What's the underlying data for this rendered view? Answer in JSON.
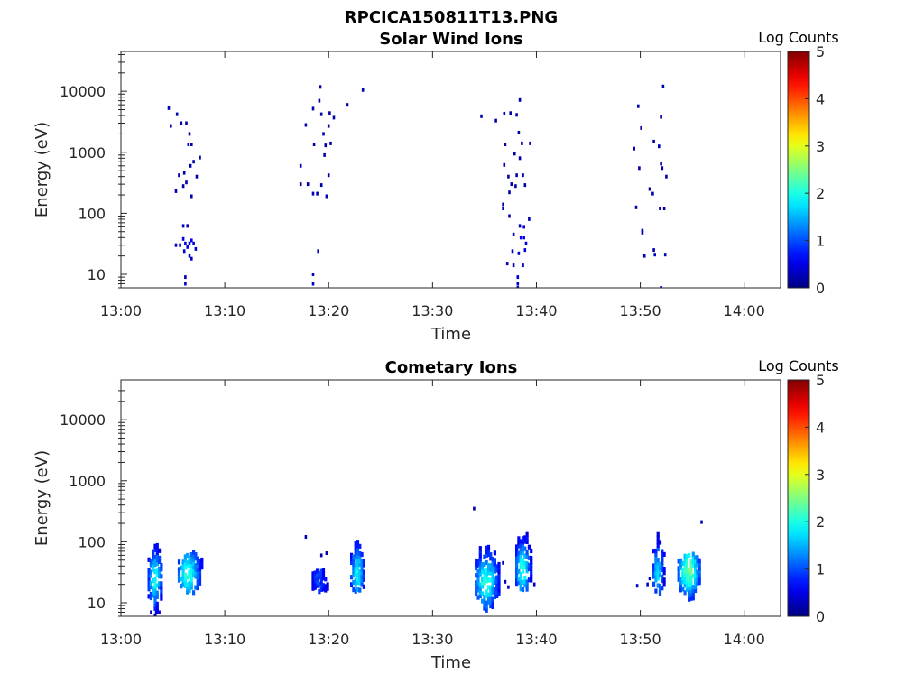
{
  "figure": {
    "title": "RPCICA150811T13.PNG"
  },
  "colormap": "jet",
  "chart_data": [
    {
      "type": "heatmap",
      "title": "Solar Wind Ions",
      "xlabel": "Time",
      "ylabel": "Energy (eV)",
      "x_ticks": [
        "13:00",
        "13:10",
        "13:20",
        "13:30",
        "13:40",
        "13:50",
        "14:00"
      ],
      "xlim_minutes_after_13_00": [
        0,
        63.5
      ],
      "y_scale": "log",
      "y_ticks": [
        10,
        100,
        1000,
        10000
      ],
      "ylim": [
        6,
        45000
      ],
      "colorbar": {
        "label": "Log Counts",
        "range": [
          0,
          5
        ],
        "ticks": [
          0,
          1,
          2,
          3,
          4,
          5
        ]
      },
      "points": [
        [
          4.6,
          5300,
          0.2
        ],
        [
          4.8,
          2700,
          0.2
        ],
        [
          5.4,
          4200,
          0.2
        ],
        [
          5.8,
          3000,
          0.2
        ],
        [
          6.3,
          3000,
          0.2
        ],
        [
          6.6,
          2000,
          0.2
        ],
        [
          6.5,
          1350,
          0.3
        ],
        [
          6.8,
          1350,
          0.2
        ],
        [
          7.0,
          700,
          0.2
        ],
        [
          7.6,
          820,
          0.2
        ],
        [
          5.6,
          420,
          0.2
        ],
        [
          6.1,
          460,
          0.2
        ],
        [
          6.7,
          600,
          0.2
        ],
        [
          7.3,
          400,
          0.2
        ],
        [
          6.0,
          280,
          0.2
        ],
        [
          6.3,
          320,
          0.2
        ],
        [
          5.3,
          230,
          0.2
        ],
        [
          6.8,
          190,
          0.2
        ],
        [
          6.0,
          62,
          0.3
        ],
        [
          6.4,
          62,
          0.3
        ],
        [
          5.3,
          30,
          0.4
        ],
        [
          5.7,
          30,
          0.4
        ],
        [
          6.0,
          38,
          0.5
        ],
        [
          6.2,
          32,
          0.5
        ],
        [
          6.4,
          28,
          0.6
        ],
        [
          6.6,
          32,
          0.5
        ],
        [
          6.8,
          36,
          0.5
        ],
        [
          7.0,
          32,
          0.4
        ],
        [
          7.2,
          26,
          0.4
        ],
        [
          6.1,
          24,
          0.4
        ],
        [
          6.6,
          20,
          0.4
        ],
        [
          6.8,
          18,
          0.3
        ],
        [
          6.2,
          9,
          0.3
        ],
        [
          6.2,
          7,
          0.3
        ],
        [
          19.2,
          11800,
          0.2
        ],
        [
          19.1,
          7000,
          0.2
        ],
        [
          18.5,
          5200,
          0.2
        ],
        [
          19.3,
          4200,
          0.2
        ],
        [
          20.1,
          4400,
          0.2
        ],
        [
          20.5,
          3700,
          0.2
        ],
        [
          21.8,
          6000,
          0.2
        ],
        [
          23.3,
          10500,
          0.2
        ],
        [
          17.8,
          2800,
          0.2
        ],
        [
          20.0,
          2700,
          0.2
        ],
        [
          19.5,
          2000,
          0.2
        ],
        [
          18.6,
          1350,
          0.2
        ],
        [
          19.7,
          1300,
          0.2
        ],
        [
          20.2,
          1400,
          0.2
        ],
        [
          19.6,
          900,
          0.2
        ],
        [
          17.3,
          600,
          0.2
        ],
        [
          20.0,
          420,
          0.2
        ],
        [
          17.3,
          300,
          0.2
        ],
        [
          18.0,
          300,
          0.2
        ],
        [
          19.3,
          290,
          0.2
        ],
        [
          18.5,
          210,
          0.3
        ],
        [
          18.9,
          210,
          0.2
        ],
        [
          19.8,
          190,
          0.2
        ],
        [
          19.0,
          24,
          0.3
        ],
        [
          18.5,
          10,
          0.3
        ],
        [
          18.5,
          7,
          0.3
        ],
        [
          34.7,
          3900,
          0.2
        ],
        [
          36.1,
          3300,
          0.2
        ],
        [
          36.9,
          4300,
          0.2
        ],
        [
          37.5,
          4400,
          0.2
        ],
        [
          38.4,
          7200,
          0.2
        ],
        [
          38.1,
          4100,
          0.2
        ],
        [
          38.3,
          2100,
          0.2
        ],
        [
          37.0,
          1350,
          0.2
        ],
        [
          38.6,
          1400,
          0.2
        ],
        [
          39.4,
          1400,
          0.2
        ],
        [
          37.9,
          950,
          0.2
        ],
        [
          38.4,
          800,
          0.2
        ],
        [
          36.9,
          620,
          0.2
        ],
        [
          38.1,
          420,
          0.2
        ],
        [
          37.3,
          400,
          0.2
        ],
        [
          38.7,
          420,
          0.2
        ],
        [
          37.6,
          300,
          0.2
        ],
        [
          38.0,
          280,
          0.2
        ],
        [
          38.9,
          290,
          0.2
        ],
        [
          37.4,
          220,
          0.2
        ],
        [
          36.8,
          140,
          0.3
        ],
        [
          36.8,
          120,
          0.3
        ],
        [
          37.4,
          90,
          0.2
        ],
        [
          39.3,
          80,
          0.3
        ],
        [
          38.4,
          62,
          0.3
        ],
        [
          38.8,
          60,
          0.4
        ],
        [
          37.8,
          45,
          0.3
        ],
        [
          38.5,
          40,
          0.6
        ],
        [
          38.8,
          40,
          0.6
        ],
        [
          39.0,
          32,
          0.5
        ],
        [
          38.9,
          25,
          0.5
        ],
        [
          37.7,
          24,
          0.3
        ],
        [
          38.3,
          22,
          0.3
        ],
        [
          37.2,
          15,
          0.3
        ],
        [
          37.8,
          14,
          0.3
        ],
        [
          38.7,
          14,
          0.3
        ],
        [
          38.2,
          9,
          0.4
        ],
        [
          38.2,
          7,
          0.4
        ],
        [
          38.2,
          6,
          0.4
        ],
        [
          49.4,
          1150,
          0.3
        ],
        [
          49.8,
          5700,
          0.2
        ],
        [
          52.2,
          12000,
          0.2
        ],
        [
          52.0,
          3800,
          0.2
        ],
        [
          50.1,
          2500,
          0.2
        ],
        [
          51.3,
          1500,
          0.2
        ],
        [
          51.8,
          1250,
          0.2
        ],
        [
          52.0,
          650,
          0.2
        ],
        [
          52.1,
          550,
          0.2
        ],
        [
          52.5,
          400,
          0.2
        ],
        [
          49.9,
          550,
          0.2
        ],
        [
          50.9,
          250,
          0.2
        ],
        [
          51.2,
          210,
          0.2
        ],
        [
          49.6,
          125,
          0.2
        ],
        [
          51.9,
          120,
          0.2
        ],
        [
          52.3,
          120,
          0.2
        ],
        [
          50.2,
          52,
          0.3
        ],
        [
          50.2,
          48,
          0.3
        ],
        [
          50.4,
          20,
          0.3
        ],
        [
          51.3,
          25,
          0.3
        ],
        [
          51.4,
          21,
          0.3
        ],
        [
          52.4,
          21,
          0.3
        ],
        [
          52.0,
          6,
          0.3
        ]
      ]
    },
    {
      "type": "heatmap",
      "title": "Cometary Ions",
      "xlabel": "Time",
      "ylabel": "Energy (eV)",
      "x_ticks": [
        "13:00",
        "13:10",
        "13:20",
        "13:30",
        "13:40",
        "13:50",
        "14:00"
      ],
      "xlim_minutes_after_13_00": [
        0,
        63.5
      ],
      "y_scale": "log",
      "y_ticks": [
        10,
        100,
        1000,
        10000
      ],
      "ylim": [
        6,
        45000
      ],
      "colorbar": {
        "label": "Log Counts",
        "range": [
          0,
          5
        ],
        "ticks": [
          0,
          1,
          2,
          3,
          4,
          5
        ]
      },
      "bursts": [
        {
          "t": [
            2.7,
            4.0
          ],
          "e": [
            6,
            95
          ],
          "peak": [
            3.3,
            25
          ],
          "amp": 1.7
        },
        {
          "t": [
            5.6,
            7.8
          ],
          "e": [
            15,
            75
          ],
          "peak": [
            6.5,
            30
          ],
          "amp": 1.8
        },
        {
          "t": [
            18.5,
            20.0
          ],
          "e": [
            15,
            40
          ],
          "peak": [
            19.1,
            22
          ],
          "amp": 0.7
        },
        {
          "t": [
            22.2,
            23.5
          ],
          "e": [
            13,
            105
          ],
          "peak": [
            22.8,
            30
          ],
          "amp": 1.6
        },
        {
          "t": [
            34.2,
            36.4
          ],
          "e": [
            8,
            110
          ],
          "peak": [
            35.2,
            22
          ],
          "amp": 1.8
        },
        {
          "t": [
            38.1,
            39.5
          ],
          "e": [
            16,
            190
          ],
          "peak": [
            38.7,
            35
          ],
          "amp": 1.8
        },
        {
          "t": [
            51.3,
            52.4
          ],
          "e": [
            13,
            130
          ],
          "peak": [
            51.7,
            32
          ],
          "amp": 1.4
        },
        {
          "t": [
            53.7,
            55.8
          ],
          "e": [
            12,
            70
          ],
          "peak": [
            54.7,
            34
          ],
          "amp": 2.1
        }
      ],
      "points": [
        [
          34.0,
          350,
          0.2
        ],
        [
          17.8,
          120,
          0.2
        ],
        [
          19.3,
          60,
          0.2
        ],
        [
          55.9,
          210,
          0.3
        ],
        [
          19.8,
          65,
          0.2
        ],
        [
          36.8,
          45,
          0.3
        ],
        [
          34.3,
          40,
          0.3
        ],
        [
          37.0,
          22,
          0.3
        ],
        [
          37.3,
          18,
          0.3
        ],
        [
          50.7,
          20,
          0.3
        ],
        [
          50.9,
          25,
          0.3
        ],
        [
          49.7,
          19,
          0.3
        ],
        [
          39.8,
          20,
          0.3
        ],
        [
          2.9,
          7,
          0.4
        ],
        [
          3.4,
          7,
          0.4
        ],
        [
          3.7,
          7,
          0.4
        ]
      ]
    }
  ]
}
